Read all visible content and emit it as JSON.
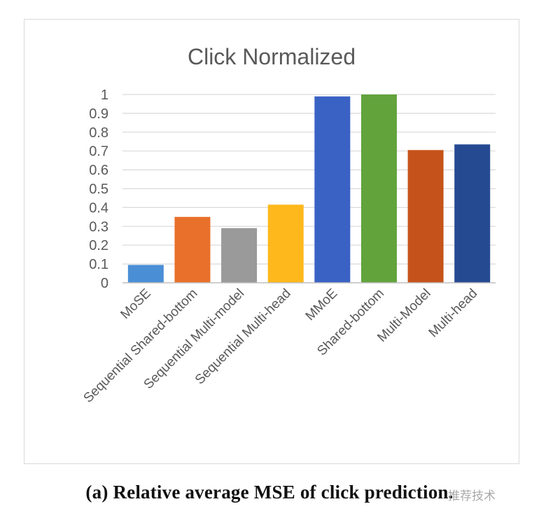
{
  "chart_data": {
    "type": "bar",
    "title": "Click Normalized",
    "categories": [
      "MoSE",
      "Sequential Shared-bottom",
      "Sequential Multi-model",
      "Sequential Multi-head",
      "MMoE",
      "Shared-bottom",
      "Multi-Model",
      "Multi-head"
    ],
    "values": [
      0.095,
      0.35,
      0.29,
      0.415,
      0.99,
      1.0,
      0.705,
      0.735
    ],
    "colors": [
      "#4a8fd6",
      "#e8702a",
      "#9a9a9a",
      "#ffb81c",
      "#3a62c4",
      "#62a33c",
      "#c6521b",
      "#264a92"
    ],
    "ylim": [
      0,
      1
    ],
    "yticks": [
      "0",
      "0.1",
      "0.2",
      "0.3",
      "0.4",
      "0.5",
      "0.6",
      "0.7",
      "0.8",
      "0.9",
      "1"
    ],
    "grid": true,
    "xlabel": "",
    "ylabel": ""
  },
  "caption": "(a) Relative average MSE of click prediction.",
  "watermark": "推荐技术"
}
